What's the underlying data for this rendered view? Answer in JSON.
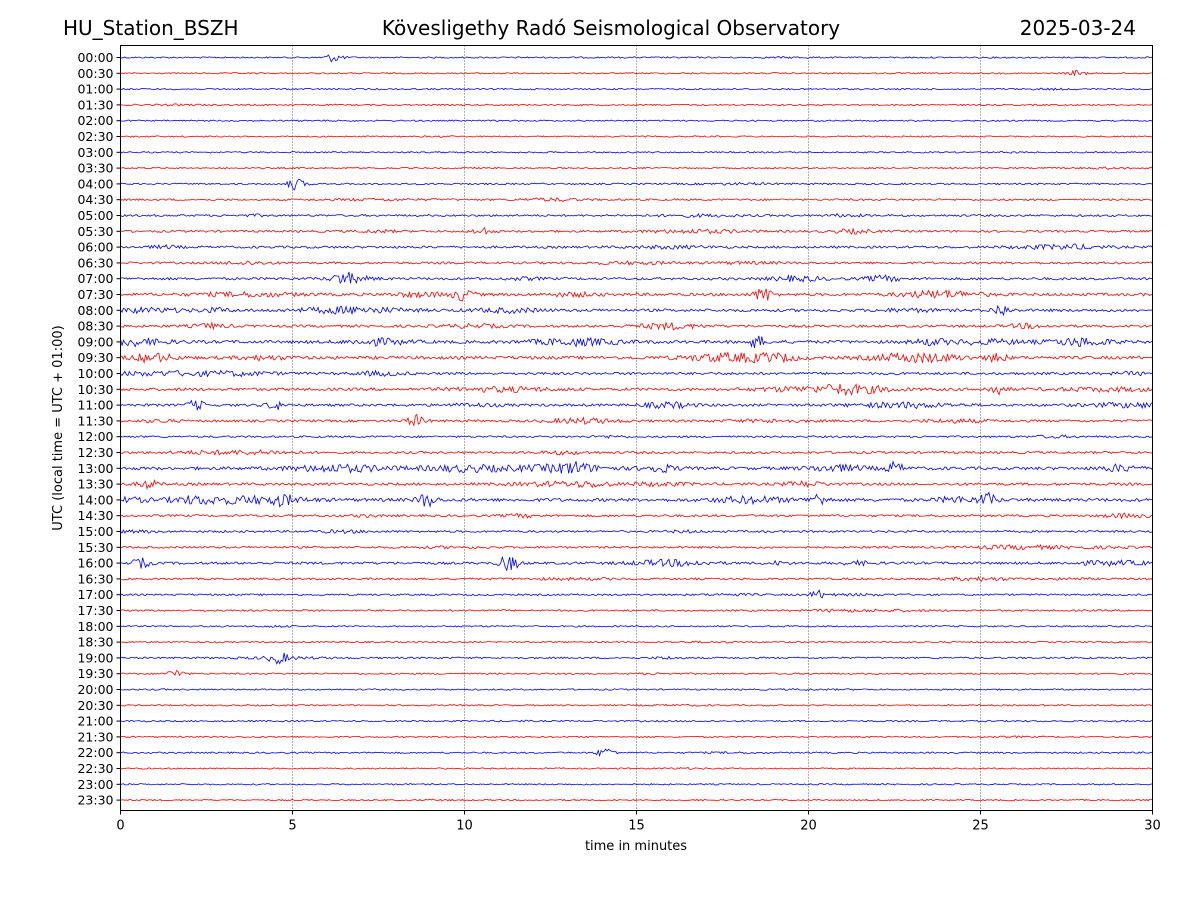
{
  "header": {
    "station": "HU_Station_BSZH",
    "title": "Kövesligethy Radó Seismological Observatory",
    "date": "2025-03-24"
  },
  "chart_data": {
    "type": "line",
    "title": "Kövesligethy Radó Seismological Observatory",
    "xlabel": "time in minutes",
    "ylabel": "UTC (local time = UTC + 01:00)",
    "xlim": [
      0,
      30
    ],
    "xticks": [
      0,
      5,
      10,
      15,
      20,
      25,
      30
    ],
    "grid": "vertical dotted at each x tick",
    "legend": "none",
    "colors": {
      "even_hour_trace": "#0000ff",
      "half_hour_trace": "#ff0000",
      "axes": "#000000"
    },
    "rows": [
      "00:00",
      "00:30",
      "01:00",
      "01:30",
      "02:00",
      "02:30",
      "03:00",
      "03:30",
      "04:00",
      "04:30",
      "05:00",
      "05:30",
      "06:00",
      "06:30",
      "07:00",
      "07:30",
      "08:00",
      "08:30",
      "09:00",
      "09:30",
      "10:00",
      "10:30",
      "11:00",
      "11:30",
      "12:00",
      "12:30",
      "13:00",
      "13:30",
      "14:00",
      "14:30",
      "15:00",
      "15:30",
      "16:00",
      "16:30",
      "17:00",
      "17:30",
      "18:00",
      "18:30",
      "19:00",
      "19:30",
      "20:00",
      "20:30",
      "21:00",
      "21:30",
      "22:00",
      "22:30",
      "23:00",
      "23:30"
    ],
    "activity": [
      0.06,
      0.04,
      0.05,
      0.05,
      0.04,
      0.05,
      0.06,
      0.06,
      0.1,
      0.16,
      0.18,
      0.22,
      0.26,
      0.24,
      0.3,
      0.38,
      0.36,
      0.3,
      0.42,
      0.44,
      0.3,
      0.38,
      0.3,
      0.28,
      0.16,
      0.24,
      0.42,
      0.32,
      0.46,
      0.24,
      0.2,
      0.2,
      0.3,
      0.18,
      0.12,
      0.12,
      0.07,
      0.06,
      0.12,
      0.08,
      0.06,
      0.05,
      0.08,
      0.05,
      0.08,
      0.05,
      0.05,
      0.05
    ],
    "events": [
      {
        "row": "00:00",
        "t": 6.2,
        "amp": 0.45
      },
      {
        "row": "00:30",
        "t": 27.8,
        "amp": 0.3
      },
      {
        "row": "04:00",
        "t": 5.1,
        "amp": 0.6
      },
      {
        "row": "05:30",
        "t": 10.5,
        "amp": 0.4
      },
      {
        "row": "07:00",
        "t": 6.5,
        "amp": 0.5
      },
      {
        "row": "07:30",
        "t": 18.7,
        "amp": 0.8
      },
      {
        "row": "07:30",
        "t": 10.0,
        "amp": 0.5
      },
      {
        "row": "08:00",
        "t": 25.6,
        "amp": 0.6
      },
      {
        "row": "09:00",
        "t": 18.5,
        "amp": 0.6
      },
      {
        "row": "09:30",
        "t": 25.5,
        "amp": 0.5
      },
      {
        "row": "10:30",
        "t": 25.5,
        "amp": 0.5
      },
      {
        "row": "11:00",
        "t": 2.2,
        "amp": 0.5
      },
      {
        "row": "11:00",
        "t": 4.5,
        "amp": 0.45
      },
      {
        "row": "11:30",
        "t": 8.6,
        "amp": 0.6
      },
      {
        "row": "13:00",
        "t": 13.2,
        "amp": 0.9
      },
      {
        "row": "13:00",
        "t": 22.5,
        "amp": 0.6
      },
      {
        "row": "13:30",
        "t": 0.8,
        "amp": 0.5
      },
      {
        "row": "14:00",
        "t": 8.9,
        "amp": 0.8
      },
      {
        "row": "14:00",
        "t": 25.2,
        "amp": 0.8
      },
      {
        "row": "14:00",
        "t": 20.3,
        "amp": 0.6
      },
      {
        "row": "16:00",
        "t": 11.3,
        "amp": 1.0
      },
      {
        "row": "16:00",
        "t": 0.6,
        "amp": 0.5
      },
      {
        "row": "17:00",
        "t": 20.3,
        "amp": 0.4
      },
      {
        "row": "19:00",
        "t": 4.6,
        "amp": 0.6
      },
      {
        "row": "19:30",
        "t": 1.6,
        "amp": 0.4
      },
      {
        "row": "22:00",
        "t": 14.1,
        "amp": 0.5
      }
    ]
  }
}
